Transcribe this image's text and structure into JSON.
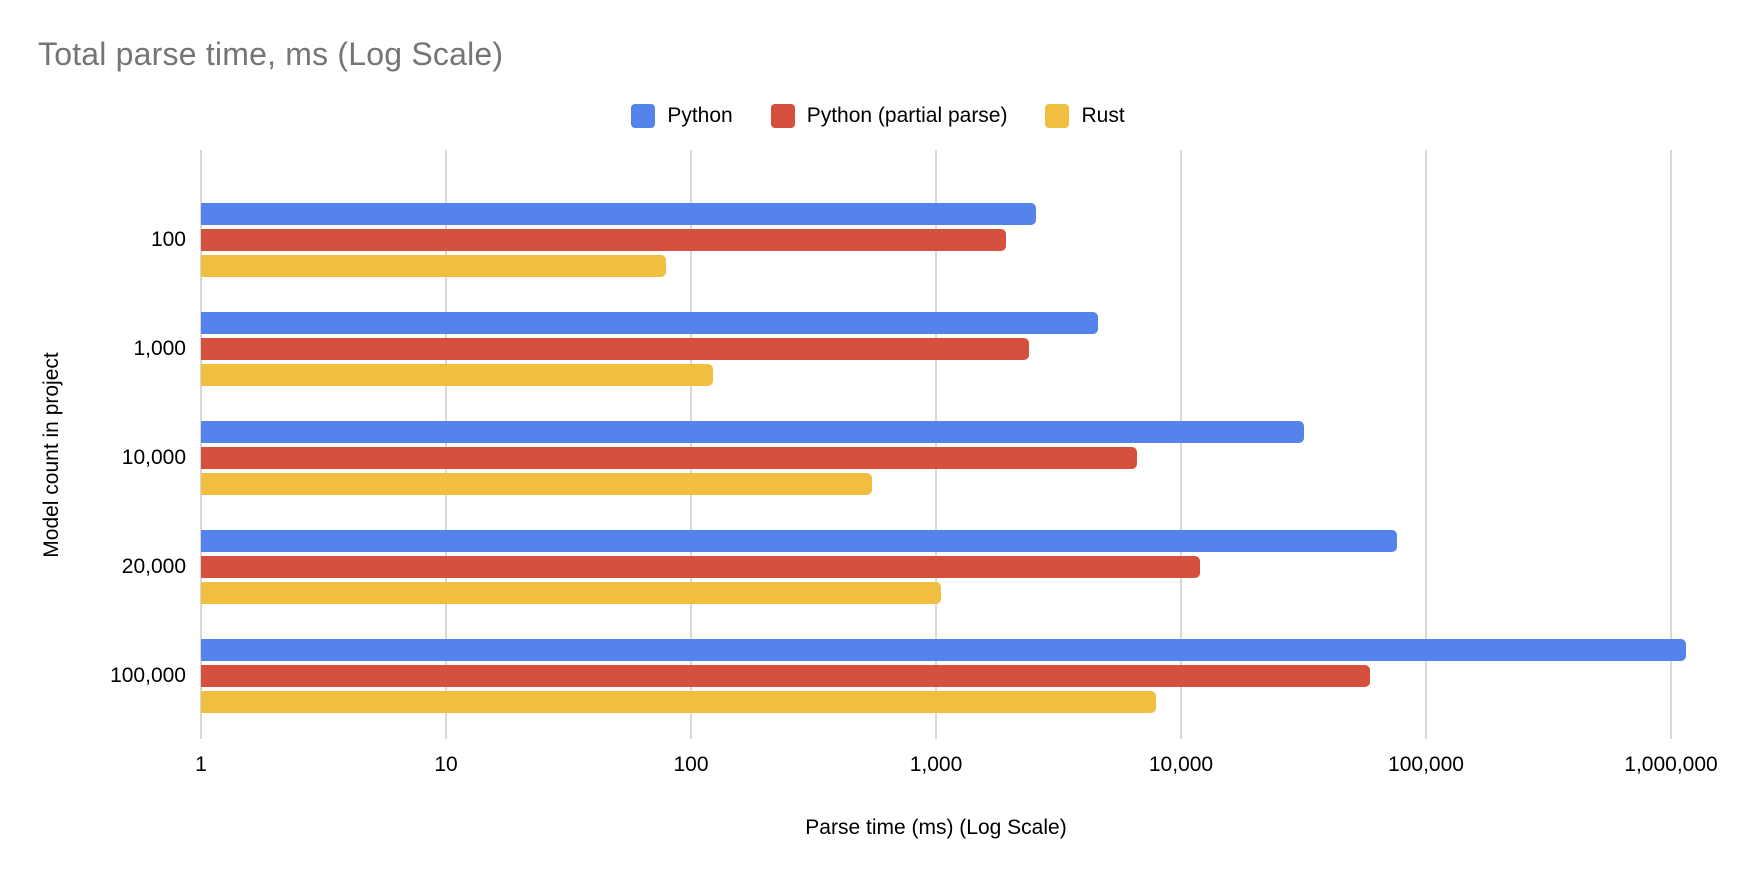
{
  "colors": {
    "grid": "#d9d9d9",
    "title-color": "#757575",
    "text": "#000000",
    "bg": "#ffffff"
  },
  "chart_data": {
    "type": "bar",
    "orientation": "horizontal",
    "x_scale": "log",
    "title": "Total parse time, ms (Log Scale)",
    "xlabel": "Parse time (ms) (Log Scale)",
    "ylabel": "Model count in project",
    "categories": [
      "100",
      "1,000",
      "10,000",
      "20,000",
      "100,000"
    ],
    "series": [
      {
        "name": "Python",
        "color": "#5483EC",
        "values": [
          2560,
          4600,
          31800,
          76000,
          1150000
        ]
      },
      {
        "name": "Python (partial parse)",
        "color": "#D5503D",
        "values": [
          1930,
          2400,
          6600,
          12000,
          59000
        ]
      },
      {
        "name": "Rust",
        "color": "#F0BF42",
        "values": [
          79,
          123,
          550,
          1050,
          7900
        ]
      }
    ],
    "x_ticks": [
      "1",
      "10",
      "100",
      "1,000",
      "10,000",
      "100,000",
      "1,000,000"
    ],
    "xlim": [
      1,
      1000000
    ],
    "grid": true,
    "legend_position": "top"
  }
}
